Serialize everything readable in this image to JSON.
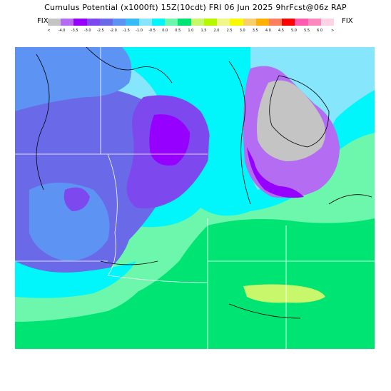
{
  "header": {
    "title": "Cumulus Potential (x1000ft) 15Z(10cdt) FRI 06 Jun 2025 9hrFcst@06z RAP",
    "fix_left": "FIX",
    "fix_right": "FIX"
  },
  "legend": {
    "colors": [
      "#c4c4c4",
      "#b36cf2",
      "#9600fe",
      "#7d48ee",
      "#6a6ae8",
      "#5d94f3",
      "#38bcf7",
      "#86e6fb",
      "#00f6fb",
      "#6cf7ad",
      "#00e473",
      "#c9f76b",
      "#b7f800",
      "#f1f789",
      "#f9f900",
      "#f8cf6c",
      "#ffb000",
      "#fd7f60",
      "#ff0000",
      "#ff5bb2",
      "#ff88bf",
      "#ffd2e4"
    ],
    "tick_labels": [
      "<",
      "-4.0",
      "-3.5",
      "-3.0",
      "-2.5",
      "-2.0",
      "-1.5",
      "-1.0",
      "-0.5",
      "0.0",
      "0.5",
      "1.0",
      "1.5",
      "2.0",
      "2.5",
      "3.0",
      "3.5",
      "4.0",
      "4.5",
      "5.0",
      "5.5",
      "6.0",
      ">"
    ]
  }
}
